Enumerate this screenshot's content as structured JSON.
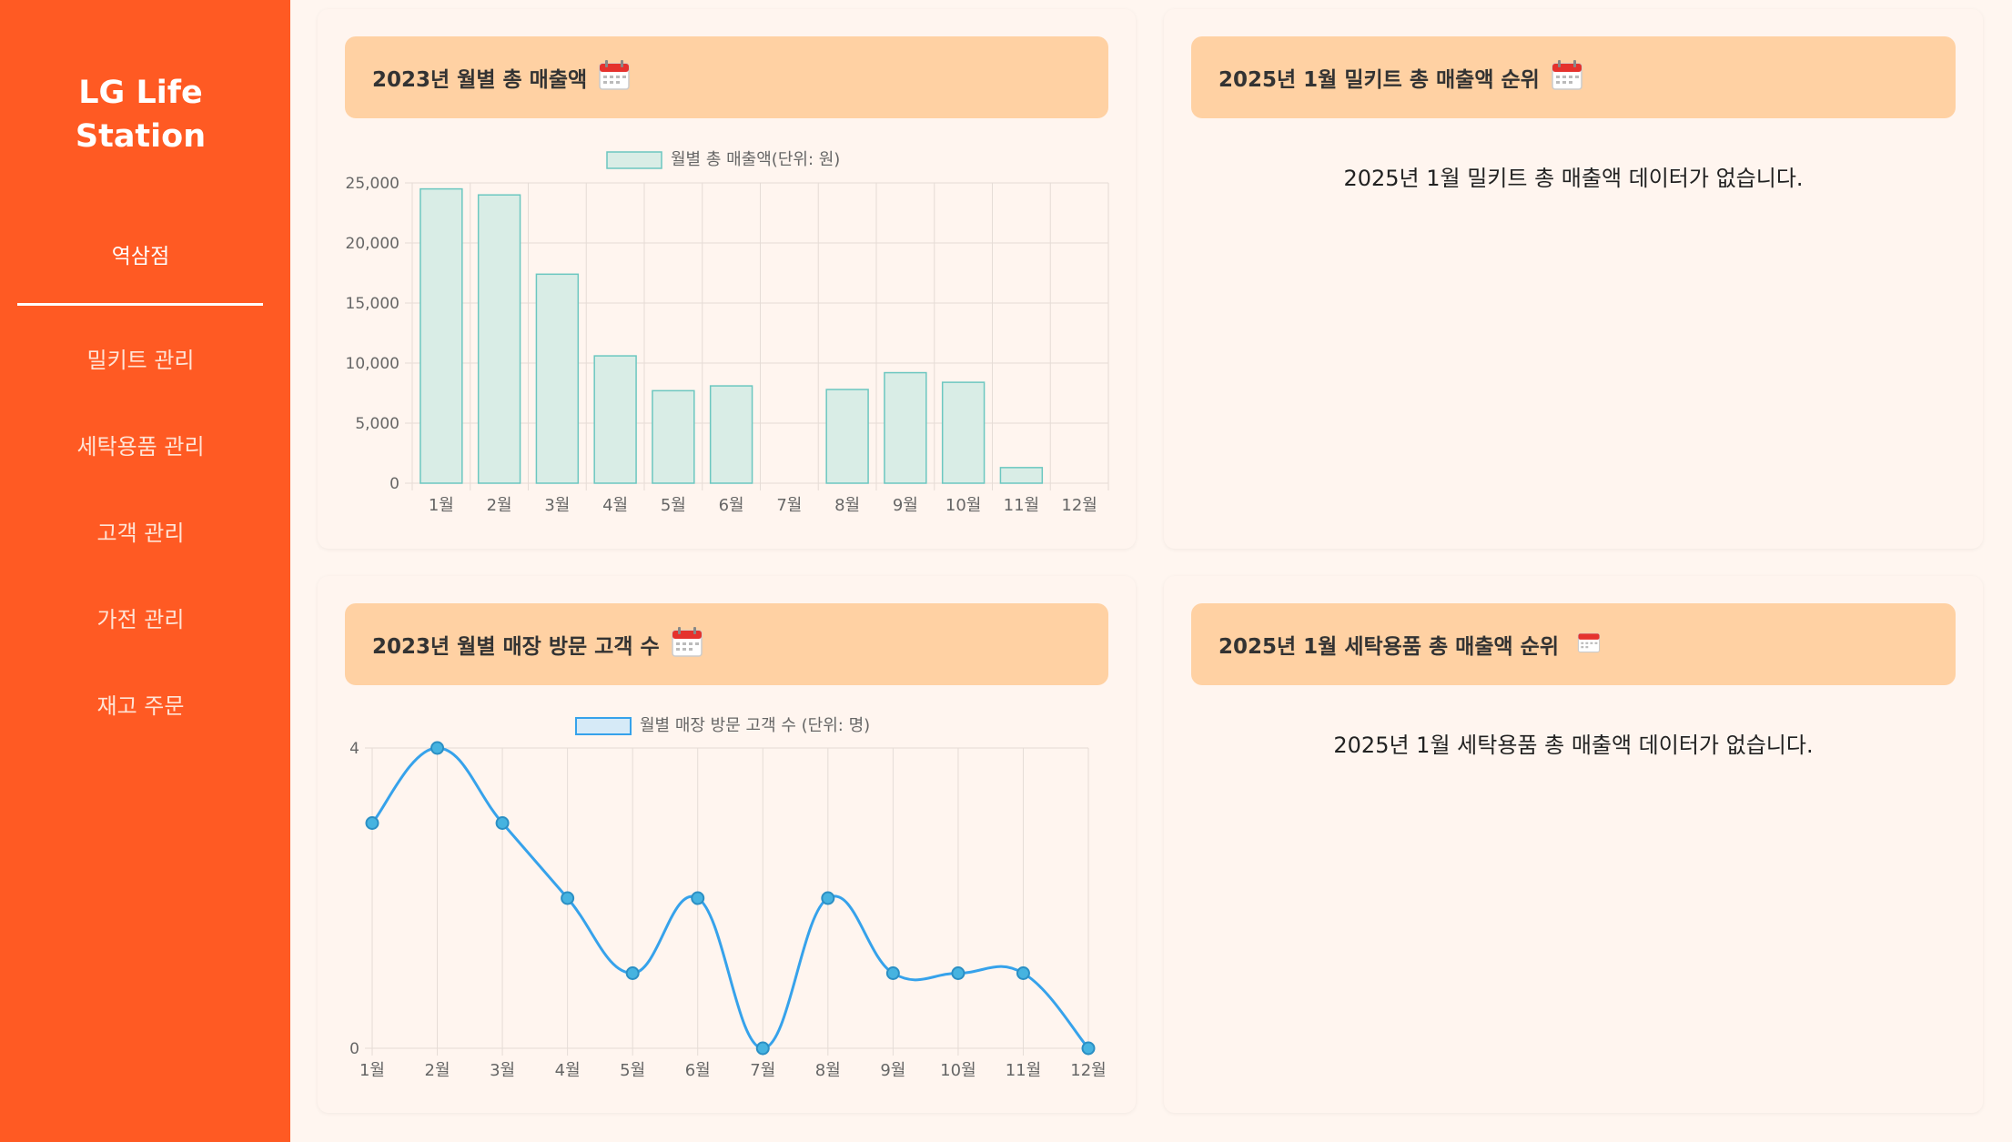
{
  "sidebar": {
    "brand_line1": "LG Life",
    "brand_line2": "Station",
    "store": "역삼점",
    "items": [
      {
        "label": "밀키트 관리"
      },
      {
        "label": "세탁용품 관리"
      },
      {
        "label": "고객 관리"
      },
      {
        "label": "가전 관리"
      },
      {
        "label": "재고 주문"
      }
    ]
  },
  "cards": {
    "monthly_sales": {
      "title": "2023년 월별 총 매출액",
      "icon": "calendar-icon"
    },
    "mealkit_rank": {
      "title": "2025년 1월 밀키트 총 매출액 순위",
      "icon": "calendar-icon",
      "empty": "2025년 1월 밀키트 총 매출액 데이터가 없습니다."
    },
    "monthly_visitors": {
      "title": "2023년 월별 매장 방문 고객 수",
      "icon": "calendar-icon"
    },
    "laundry_rank": {
      "title": "2025년 1월 세탁용품 총 매출액 순위",
      "icon": "calendar-icon",
      "empty": "2025년 1월 세탁용품 총 매출액 데이터가 없습니다."
    }
  },
  "colors": {
    "accent": "#ff5a23",
    "header": "#ffd1a3",
    "bar_fill": "#d9ede6",
    "bar_stroke": "#6cc7c0",
    "line": "#36a2eb"
  },
  "chart_data": [
    {
      "type": "bar",
      "categories": [
        "1월",
        "2월",
        "3월",
        "4월",
        "5월",
        "6월",
        "7월",
        "8월",
        "9월",
        "10월",
        "11월",
        "12월"
      ],
      "series": [
        {
          "name": "월별 총 매출액(단위: 원)",
          "values": [
            24500,
            24000,
            17400,
            10600,
            7700,
            8100,
            0,
            7800,
            9200,
            8400,
            1300,
            0
          ]
        }
      ],
      "ylim": [
        0,
        25000
      ],
      "yticks": [
        "0",
        "5,000",
        "10,000",
        "15,000",
        "20,000",
        "25,000"
      ],
      "legend": "top",
      "grid": true
    },
    {
      "type": "line",
      "categories": [
        "1월",
        "2월",
        "3월",
        "4월",
        "5월",
        "6월",
        "7월",
        "8월",
        "9월",
        "10월",
        "11월",
        "12월"
      ],
      "series": [
        {
          "name": "월별 매장 방문 고객 수 (단위: 명)",
          "values": [
            3,
            4,
            3,
            2,
            1,
            2,
            0,
            2,
            1,
            1,
            1,
            0
          ]
        }
      ],
      "ylim": [
        0,
        4
      ],
      "yticks": [
        "0",
        "4"
      ],
      "legend": "top",
      "grid": true
    }
  ]
}
